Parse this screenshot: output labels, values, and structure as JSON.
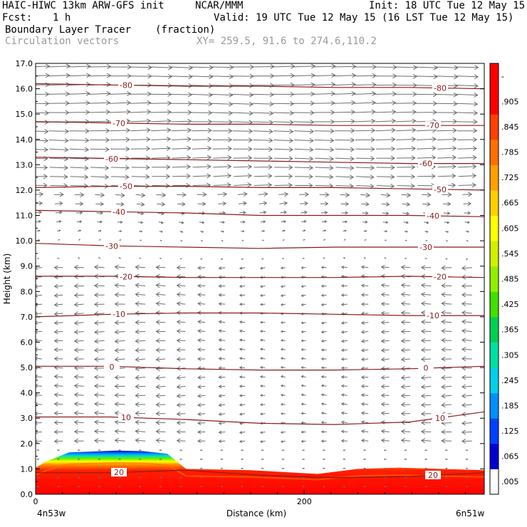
{
  "header": {
    "model_line": "HAIC-HIWC 13km ARW-GFS init",
    "org": "NCAR/MMM",
    "init": "Init: 18 UTC Tue 12 May 15",
    "fcst_label": "Fcst:",
    "fcst_value": "1 h",
    "valid": "Valid: 19 UTC Tue 12 May 15 (16 LST Tue 12 May 15)",
    "field_name": "Boundary Layer Tracer",
    "field_units": "(fraction)",
    "vector_name": "Circulation vectors",
    "xy_range": "XY= 259.5, 91.6 to 274.6,110.2"
  },
  "chart_data": {
    "type": "heatmap",
    "title": "Boundary Layer Tracer",
    "units": "(fraction)",
    "xlabel": "Distance (km)",
    "ylabel": "Height (km)",
    "x_range": [
      0,
      334
    ],
    "y_range": [
      0,
      17
    ],
    "x_ticks": [
      "0",
      "200"
    ],
    "y_ticks": [
      "0.0",
      "1.0",
      "2.0",
      "3.0",
      "4.0",
      "5.0",
      "6.0",
      "7.0",
      "8.0",
      "9.0",
      "10.0",
      "11.0",
      "12.0",
      "13.0",
      "14.0",
      "15.0",
      "16.0",
      "17.0"
    ],
    "x_left_label": "4n53w",
    "x_right_label": "6n51w",
    "colorbar": {
      "labels": [
        ".005",
        ".065",
        ".125",
        ".185",
        ".245",
        ".305",
        ".365",
        ".425",
        ".485",
        ".545",
        ".605",
        ".665",
        ".725",
        ".785",
        ".845",
        ".905",
        "-"
      ],
      "colors": [
        "#ffffff",
        "#0000d0",
        "#0040ff",
        "#0090ff",
        "#00d0e8",
        "#00e0a0",
        "#00d050",
        "#40e000",
        "#90f000",
        "#d0f000",
        "#ffff00",
        "#ffd000",
        "#ffa000",
        "#ff7000",
        "#ff4000",
        "#ff0000",
        "#ff0000"
      ]
    },
    "tracer_top_km": [
      [
        0,
        1.05
      ],
      [
        8,
        1.3
      ],
      [
        25,
        1.65
      ],
      [
        60,
        1.72
      ],
      [
        80,
        1.7
      ],
      [
        98,
        1.6
      ],
      [
        112,
        1.0
      ],
      [
        160,
        0.95
      ],
      [
        210,
        0.8
      ],
      [
        240,
        1.0
      ],
      [
        270,
        1.05
      ],
      [
        300,
        1.0
      ],
      [
        334,
        0.95
      ]
    ],
    "temperature_contours": [
      {
        "label": "-80",
        "levels": [
          16.2,
          16.15,
          16.1,
          16.1,
          16.05,
          16.05,
          16.0
        ]
      },
      {
        "label": "-70",
        "levels": [
          14.7,
          14.65,
          14.6,
          14.6,
          14.55,
          14.55,
          14.55
        ]
      },
      {
        "label": "-60",
        "levels": [
          13.3,
          13.25,
          13.2,
          13.15,
          13.1,
          13.05,
          13.05
        ]
      },
      {
        "label": "-50",
        "levels": [
          12.1,
          12.15,
          12.15,
          12.1,
          12.1,
          12.05,
          12.0
        ]
      },
      {
        "label": "-40",
        "levels": [
          11.2,
          11.15,
          11.1,
          11.0,
          11.0,
          11.0,
          10.95
        ]
      },
      {
        "label": "-30",
        "levels": [
          9.9,
          9.8,
          9.75,
          9.7,
          9.75,
          9.75,
          9.75
        ]
      },
      {
        "label": "-20",
        "levels": [
          8.6,
          8.6,
          8.55,
          8.55,
          8.55,
          8.6,
          8.55
        ]
      },
      {
        "label": "-10",
        "levels": [
          7.0,
          7.1,
          7.15,
          7.15,
          7.1,
          7.05,
          7.05
        ]
      },
      {
        "label": "0",
        "levels": [
          5.05,
          5.05,
          4.95,
          4.9,
          4.9,
          4.95,
          5.05
        ]
      },
      {
        "label": "10",
        "levels": [
          3.05,
          3.05,
          2.95,
          2.8,
          2.75,
          2.85,
          3.25
        ]
      },
      {
        "label": "20",
        "levels": [
          0.85,
          0.85,
          0.95,
          0.75,
          0.65,
          0.7,
          0.85
        ]
      }
    ],
    "grid": false,
    "vectors": "circulation"
  }
}
